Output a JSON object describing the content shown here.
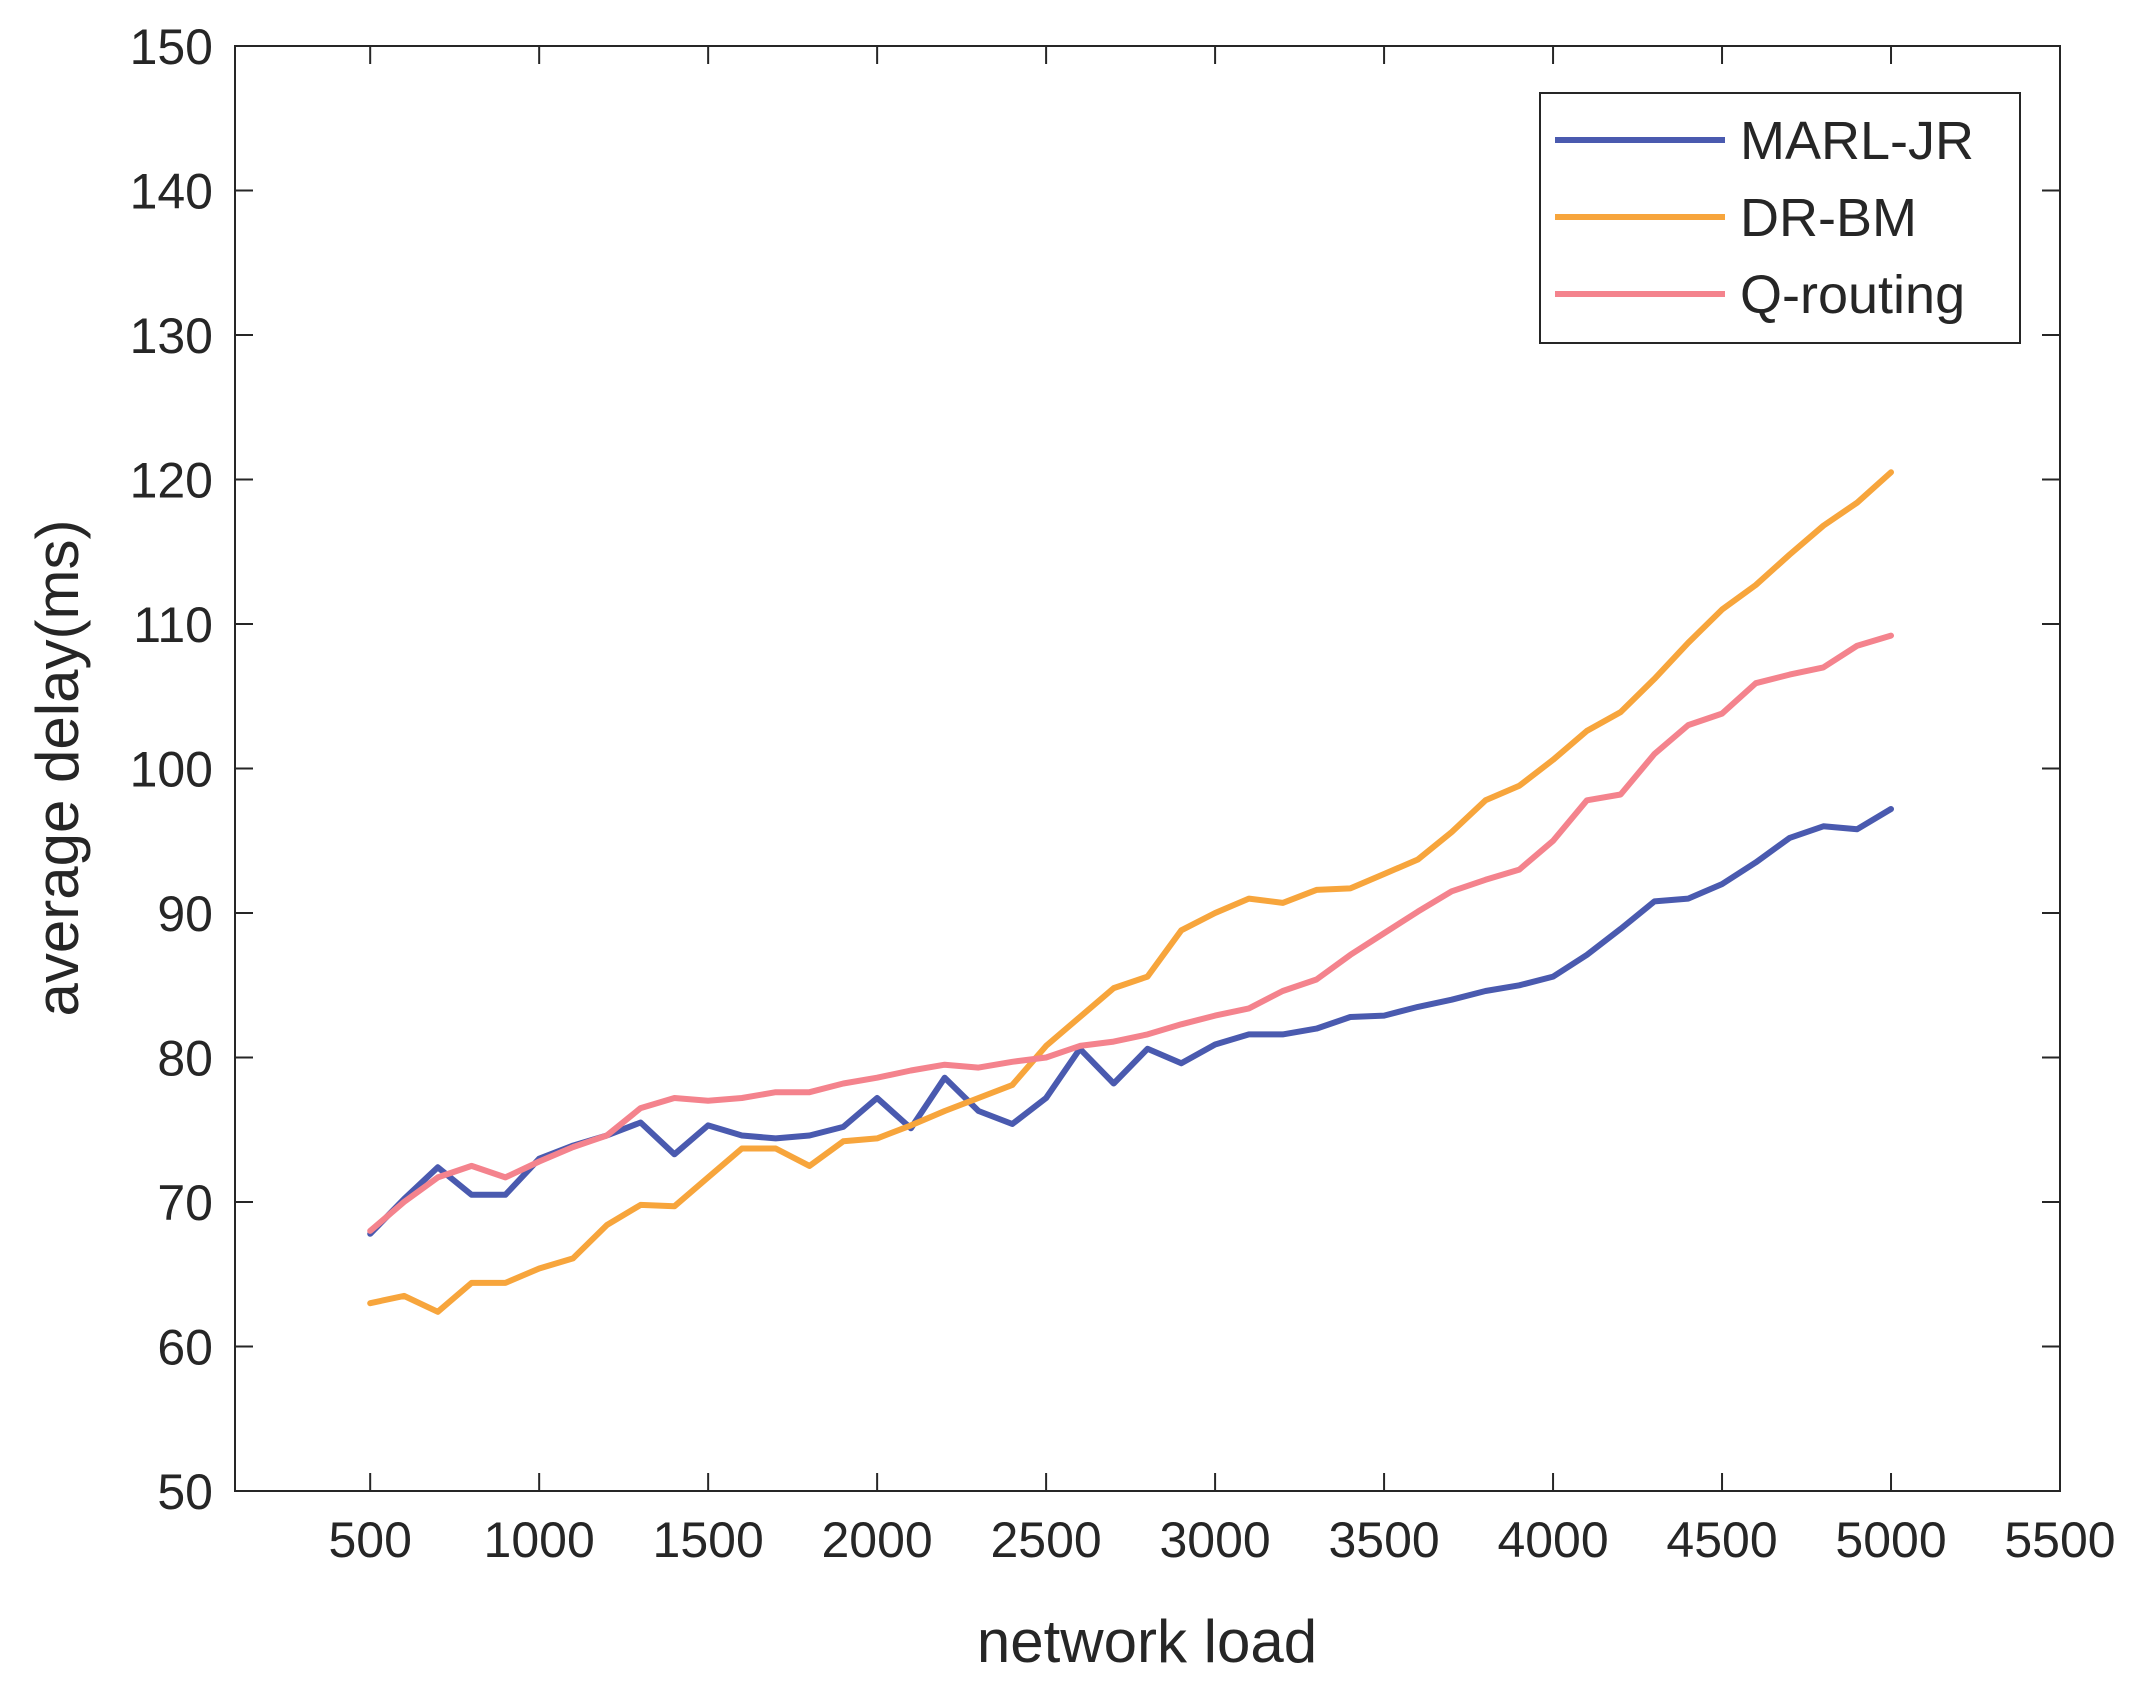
{
  "chart_data": {
    "type": "line",
    "title": "",
    "xlabel": "network load",
    "ylabel": "average delay(ms)",
    "xlim": [
      100,
      5500
    ],
    "ylim": [
      50,
      150
    ],
    "xticks": [
      500,
      1000,
      1500,
      2000,
      2500,
      3000,
      3500,
      4000,
      4500,
      5000,
      5500
    ],
    "yticks": [
      50,
      60,
      70,
      80,
      90,
      100,
      110,
      120,
      130,
      140,
      150
    ],
    "grid": false,
    "legend_position": "top-right",
    "x": [
      500,
      600,
      700,
      800,
      900,
      1000,
      1100,
      1200,
      1300,
      1400,
      1500,
      1600,
      1700,
      1800,
      1900,
      2000,
      2100,
      2200,
      2300,
      2400,
      2500,
      2600,
      2700,
      2800,
      2900,
      3000,
      3100,
      3200,
      3300,
      3400,
      3500,
      3600,
      3700,
      3800,
      3900,
      4000,
      4100,
      4200,
      4300,
      4400,
      4500,
      4600,
      4700,
      4800,
      4900,
      5000
    ],
    "series": [
      {
        "name": "MARL-JR",
        "color": "#4a5aaf",
        "values": [
          67.8,
          70.2,
          72.4,
          70.5,
          70.5,
          73.0,
          73.9,
          74.6,
          75.5,
          73.3,
          75.3,
          74.6,
          74.4,
          74.6,
          75.2,
          77.2,
          75.1,
          78.6,
          76.3,
          75.4,
          77.2,
          80.6,
          78.2,
          80.6,
          79.6,
          80.9,
          81.6,
          81.6,
          82.0,
          82.8,
          82.9,
          83.5,
          84.0,
          84.6,
          85.0,
          85.6,
          87.1,
          88.9,
          90.8,
          91.0,
          92.0,
          93.5,
          95.2,
          96.0,
          95.8,
          97.2
        ]
      },
      {
        "name": "DR-BM",
        "color": "#f7a53c",
        "values": [
          63.0,
          63.5,
          62.4,
          64.4,
          64.4,
          65.4,
          66.1,
          68.4,
          69.8,
          69.7,
          71.7,
          73.7,
          73.7,
          72.5,
          74.2,
          74.4,
          75.3,
          76.3,
          77.2,
          78.1,
          80.8,
          82.8,
          84.8,
          85.6,
          88.8,
          90.0,
          91.0,
          90.7,
          91.6,
          91.7,
          92.7,
          93.7,
          95.6,
          97.8,
          98.8,
          100.6,
          102.6,
          103.9,
          106.2,
          108.7,
          111.0,
          112.7,
          114.8,
          116.8,
          118.4,
          120.5
        ]
      },
      {
        "name": "Q-routing",
        "color": "#f4838d",
        "values": [
          68.0,
          70.0,
          71.7,
          72.5,
          71.7,
          72.8,
          73.8,
          74.6,
          76.5,
          77.2,
          77.0,
          77.2,
          77.6,
          77.6,
          78.2,
          78.6,
          79.1,
          79.5,
          79.3,
          79.7,
          80.0,
          80.8,
          81.1,
          81.6,
          82.3,
          82.9,
          83.4,
          84.6,
          85.4,
          87.1,
          88.6,
          90.1,
          91.5,
          92.3,
          93.0,
          95.0,
          97.8,
          98.2,
          101.0,
          103.0,
          103.8,
          105.9,
          106.5,
          107.0,
          108.5,
          109.2
        ]
      }
    ]
  }
}
